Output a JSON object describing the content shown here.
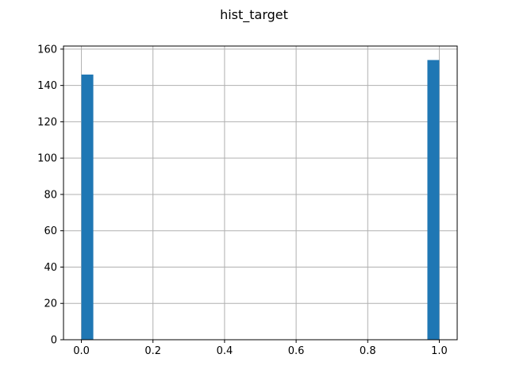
{
  "chart_data": {
    "type": "bar",
    "title": "hist_target",
    "xlabel": "",
    "ylabel": "",
    "xlim": [
      -0.05,
      1.05
    ],
    "ylim": [
      0,
      161.7
    ],
    "xticks": [
      0.0,
      0.2,
      0.4,
      0.6,
      0.8,
      1.0
    ],
    "xtick_labels": [
      "0.0",
      "0.2",
      "0.4",
      "0.6",
      "0.8",
      "1.0"
    ],
    "yticks": [
      0,
      20,
      40,
      60,
      80,
      100,
      120,
      140,
      160
    ],
    "ytick_labels": [
      "0",
      "20",
      "40",
      "60",
      "80",
      "100",
      "120",
      "140",
      "160"
    ],
    "grid": true,
    "bar_color": "#1f77b4",
    "bins": [
      {
        "start": 0.0,
        "end": 0.0333,
        "count": 146
      },
      {
        "start": 0.9667,
        "end": 1.0,
        "count": 154
      }
    ]
  }
}
